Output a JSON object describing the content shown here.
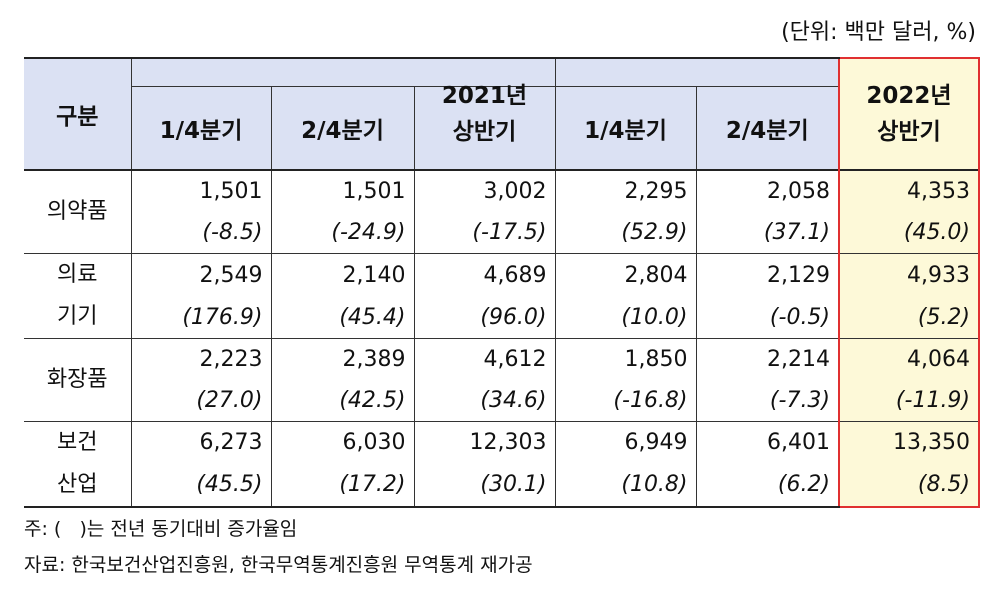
{
  "unit": "(단위: 백만 달러, %)",
  "header": {
    "category": "구분",
    "y2021": {
      "q1": "1/4분기",
      "q2": "2/4분기",
      "half_year": "2021년",
      "half_label": "상반기"
    },
    "y2022": {
      "q1": "1/4분기",
      "q2": "2/4분기",
      "half_year": "2022년",
      "half_label": "상반기"
    }
  },
  "rows": [
    {
      "label1": "의약품",
      "label2": "",
      "values": [
        "1,501",
        "1,501",
        "3,002",
        "2,295",
        "2,058",
        "4,353"
      ],
      "pcts": [
        "(-8.5)",
        "(-24.9)",
        "(-17.5)",
        "(52.9)",
        "(37.1)",
        "(45.0)"
      ]
    },
    {
      "label1": "의료",
      "label2": "기기",
      "values": [
        "2,549",
        "2,140",
        "4,689",
        "2,804",
        "2,129",
        "4,933"
      ],
      "pcts": [
        "(176.9)",
        "(45.4)",
        "(96.0)",
        "(10.0)",
        "(-0.5)",
        "(5.2)"
      ]
    },
    {
      "label1": "화장품",
      "label2": "",
      "values": [
        "2,223",
        "2,389",
        "4,612",
        "1,850",
        "2,214",
        "4,064"
      ],
      "pcts": [
        "(27.0)",
        "(42.5)",
        "(34.6)",
        "(-16.8)",
        "(-7.3)",
        "(-11.9)"
      ]
    },
    {
      "label1": "보건",
      "label2": "산업",
      "values": [
        "6,273",
        "6,030",
        "12,303",
        "6,949",
        "6,401",
        "13,350"
      ],
      "pcts": [
        "(45.5)",
        "(17.2)",
        "(30.1)",
        "(10.8)",
        "(6.2)",
        "(8.5)"
      ]
    }
  ],
  "notes": {
    "note1": "주: (   )는 전년 동기대비 증가율임",
    "note2": "자료: 한국보건산업진흥원, 한국무역통계진흥원 무역통계 재가공"
  }
}
